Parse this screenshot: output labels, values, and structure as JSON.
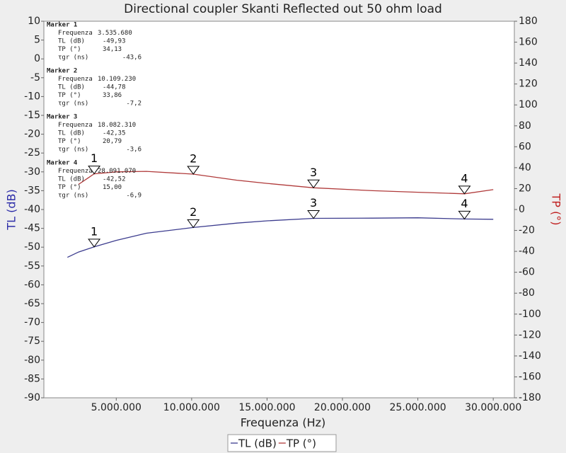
{
  "chart_data": {
    "type": "line",
    "title": "Directional coupler Skanti Reflected out 50 ohm load",
    "x_label": "Frequenza (Hz)",
    "y_label": "TL (dB)",
    "y2_label": "TP (°)",
    "xlim": [
      200000,
      31400000
    ],
    "xticks": [
      {
        "value": 5000000,
        "label": "5.000.000"
      },
      {
        "value": 10000000,
        "label": "10.000.000"
      },
      {
        "value": 15000000,
        "label": "15.000.000"
      },
      {
        "value": 20000000,
        "label": "20.000.000"
      },
      {
        "value": 25000000,
        "label": "25.000.000"
      },
      {
        "value": 30000000,
        "label": "30.000.000"
      }
    ],
    "ylim": [
      -90,
      10
    ],
    "yticks": [
      -90,
      -85,
      -80,
      -75,
      -70,
      -65,
      -60,
      -55,
      -50,
      -45,
      -40,
      -35,
      -30,
      -25,
      -20,
      -15,
      -10,
      -5,
      0,
      5,
      10
    ],
    "y2lim": [
      -180,
      180
    ],
    "y2ticks": [
      -180,
      -160,
      -140,
      -120,
      -100,
      -80,
      -60,
      -40,
      -20,
      0,
      20,
      40,
      60,
      80,
      100,
      120,
      140,
      160,
      180
    ],
    "grid": false,
    "legend": "bottom",
    "series": [
      {
        "name": "TL (dB)",
        "color": "#3c3c8e",
        "x": [
          1760000,
          2500000,
          3535680,
          5000000,
          7000000,
          10109230,
          13000000,
          15000000,
          18082310,
          22000000,
          25000000,
          28091070,
          30000000
        ],
        "values": [
          -52.7,
          -51.3,
          -49.93,
          -48.2,
          -46.3,
          -44.78,
          -43.6,
          -43.0,
          -42.35,
          -42.3,
          -42.2,
          -42.52,
          -42.6
        ]
      },
      {
        "name": "TP (°)",
        "color": "#b03a3a",
        "axis": "y2",
        "x": [
          2500000,
          3535680,
          5000000,
          7000000,
          10109230,
          13000000,
          15000000,
          18082310,
          22000000,
          25000000,
          28091070,
          30000000
        ],
        "values": [
          24,
          34.13,
          36,
          36.5,
          33.86,
          28,
          25,
          20.79,
          18,
          16.5,
          15.0,
          19
        ]
      }
    ],
    "marker_fields": [
      "Frequenza",
      "TL (dB)",
      "TP (°)",
      "τgr (ns)"
    ],
    "markers": [
      {
        "name": "Marker 1",
        "label": "1",
        "frequency": 3535680,
        "frequency_label": "3.535.680",
        "tl": -49.93,
        "tl_label": "-49,93",
        "tp": 34.13,
        "tp_label": "34,13",
        "tgr": -43.6,
        "tgr_label": "-43,6"
      },
      {
        "name": "Marker 2",
        "label": "2",
        "frequency": 10109230,
        "frequency_label": "10.109.230",
        "tl": -44.78,
        "tl_label": "-44,78",
        "tp": 33.86,
        "tp_label": "33,86",
        "tgr": -7.2,
        "tgr_label": "-7,2"
      },
      {
        "name": "Marker 3",
        "label": "3",
        "frequency": 18082310,
        "frequency_label": "18.082.310",
        "tl": -42.35,
        "tl_label": "-42,35",
        "tp": 20.79,
        "tp_label": "20,79",
        "tgr": -3.6,
        "tgr_label": "-3,6"
      },
      {
        "name": "Marker 4",
        "label": "4",
        "frequency": 28091070,
        "frequency_label": "28.091.070",
        "tl": -42.52,
        "tl_label": "-42,52",
        "tp": 15.0,
        "tp_label": "15,00",
        "tgr": -6.9,
        "tgr_label": "-6,9"
      }
    ]
  }
}
